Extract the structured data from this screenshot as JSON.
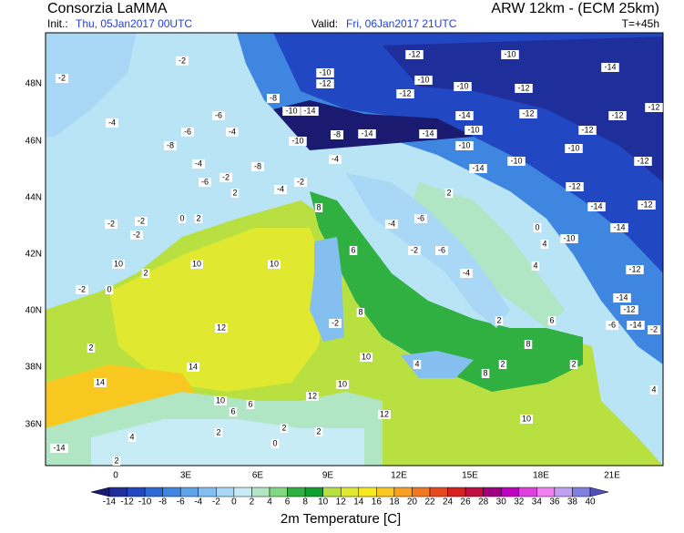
{
  "header": {
    "title": "Consorzia LaMMA",
    "model": "ARW 12km - (ECM 25km)",
    "init_label": "Init.:",
    "init_value": "Thu, 05Jan2017 00UTC",
    "valid_label": "Valid:",
    "valid_value": "Fri, 06Jan2017 21UTC",
    "lead": "T=+45h"
  },
  "map": {
    "lat_labels": [
      "48N",
      "46N",
      "44N",
      "42N",
      "40N",
      "38N",
      "36N"
    ],
    "lon_labels": [
      "0",
      "3E",
      "6E",
      "9E",
      "12E",
      "15E",
      "18E",
      "21E"
    ],
    "labels": [
      -12,
      -10,
      -14,
      -2,
      -2,
      -10,
      -12,
      -10,
      -10,
      -12,
      -12,
      -8,
      -10,
      -14,
      -4,
      -6,
      -14,
      -12,
      -12,
      -12,
      -6,
      -4,
      -10,
      -8,
      -14,
      -14,
      -10,
      -12,
      -8,
      -10,
      -10,
      -4,
      -8,
      -4,
      -14,
      -10,
      -12,
      -6,
      -2,
      -4,
      -2,
      2,
      -12,
      2,
      0,
      2,
      -2,
      -2,
      -14,
      -12,
      8,
      -4,
      -6,
      -2,
      0,
      -10,
      -14,
      6,
      -2,
      -6,
      4,
      10,
      10,
      10,
      -4,
      4,
      -12,
      -2,
      0,
      2,
      8,
      -2,
      -14,
      -12,
      6,
      12,
      2,
      -6,
      -14,
      2,
      10,
      8,
      14,
      2,
      8,
      14,
      10,
      10,
      6,
      4,
      12,
      10,
      2,
      2,
      0,
      2,
      2,
      4,
      -14,
      12,
      6,
      -2,
      2,
      4
    ]
  },
  "colorbar": {
    "title": "2m Temperature [C]",
    "levels": [
      -14,
      -12,
      -10,
      -8,
      -6,
      -4,
      -2,
      0,
      2,
      4,
      6,
      8,
      10,
      12,
      14,
      16,
      18,
      20,
      22,
      24,
      26,
      28,
      30,
      32,
      34,
      36,
      38,
      40
    ],
    "colors": [
      "#1a1a70",
      "#1e2f9c",
      "#2147c2",
      "#2d6ad8",
      "#3f86e0",
      "#5ea2e8",
      "#84bff0",
      "#a8d8f5",
      "#c8ecf5",
      "#b0e6c4",
      "#80d880",
      "#30b040",
      "#10a030",
      "#b8e040",
      "#e0e830",
      "#f8e820",
      "#f8c820",
      "#f8a020",
      "#f07820",
      "#e84820",
      "#d82020",
      "#c01040",
      "#a00080",
      "#c000c0",
      "#e040e0",
      "#f080f0",
      "#c0a0f0",
      "#8080e0",
      "#5050c0"
    ]
  }
}
